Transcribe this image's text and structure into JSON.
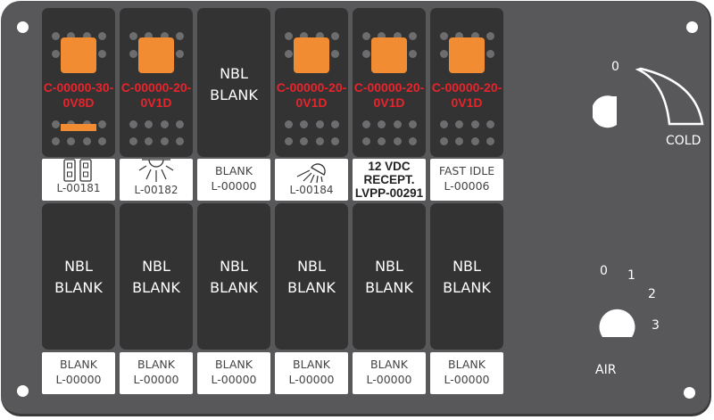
{
  "top_switches": [
    {
      "code": "C-00000-30-0V8D",
      "indicator_bar": true,
      "label_icon": "dual-socket-icon",
      "label_text": "L-00181"
    },
    {
      "code": "C-00000-20-0V1D",
      "label_icon": "dome-light-icon",
      "label_text": "L-00182"
    },
    {
      "blank_line1": "NBL",
      "blank_line2": "BLANK",
      "label_line1": "BLANK",
      "label_line2": "L-00000"
    },
    {
      "code": "C-00000-20-0V1D",
      "label_icon": "spotlight-icon",
      "label_text": "L-00184"
    },
    {
      "code": "C-00000-20-0V1D",
      "label_line1": "12 VDC",
      "label_line2": "RECEPT.",
      "label_line3": "LVPP-00291"
    },
    {
      "code": "C-00000-20-0V1D",
      "label_line1": "FAST IDLE",
      "label_line2": "L-00006"
    }
  ],
  "bottom_switches": {
    "line1": "NBL",
    "line2": "BLANK",
    "label_line1": "BLANK",
    "label_line2": "L-00000",
    "count": 6
  },
  "temp_knob": {
    "zero": "0",
    "cold": "COLD"
  },
  "air_knob": {
    "positions": [
      "0",
      "1",
      "2",
      "3"
    ],
    "label": "AIR"
  },
  "colors": {
    "panel": "#58585a",
    "switch": "#333334",
    "indicator": "#f28c33",
    "code_text": "#e8242b"
  }
}
